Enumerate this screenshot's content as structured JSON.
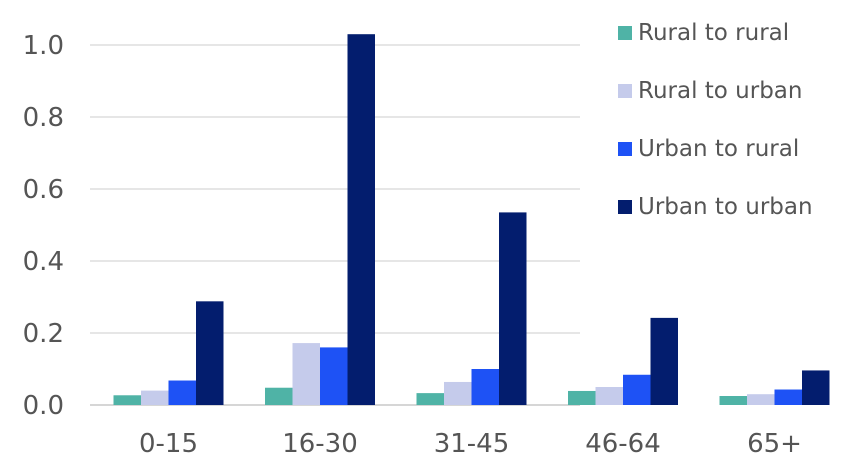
{
  "chart_data": {
    "type": "bar",
    "categories": [
      "0-15",
      "16-30",
      "31-45",
      "46-64",
      "65+"
    ],
    "series": [
      {
        "name": "Rural to rural",
        "color": "#4fb3a6",
        "values": [
          0.027,
          0.048,
          0.033,
          0.039,
          0.025
        ]
      },
      {
        "name": "Rural to urban",
        "color": "#c5cbeb",
        "values": [
          0.04,
          0.172,
          0.064,
          0.05,
          0.03
        ]
      },
      {
        "name": "Urban to rural",
        "color": "#1e52f5",
        "values": [
          0.068,
          0.16,
          0.1,
          0.084,
          0.043
        ]
      },
      {
        "name": "Urban to urban",
        "color": "#031d6e",
        "values": [
          0.288,
          1.03,
          0.535,
          0.242,
          0.096
        ]
      }
    ],
    "y_ticks": [
      "0.0",
      "0.2",
      "0.4",
      "0.6",
      "0.8",
      "1.0"
    ],
    "ylim": [
      0,
      1.0
    ],
    "title": "",
    "xlabel": "",
    "ylabel": "",
    "grid": true,
    "legend_position": "top-right"
  }
}
